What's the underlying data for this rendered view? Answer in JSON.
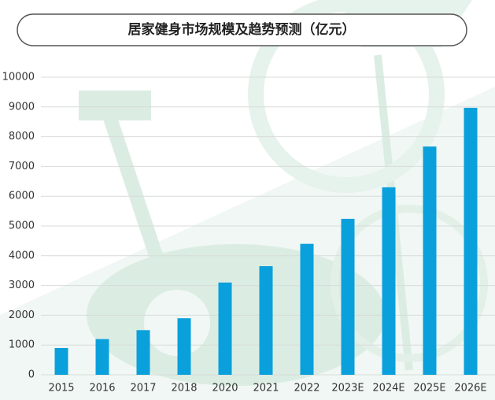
{
  "chart_data": {
    "type": "bar",
    "title": "居家健身市场规模及趋势预测（亿元）",
    "categories": [
      "2015",
      "2016",
      "2017",
      "2018",
      "2020",
      "2021",
      "2022",
      "2023E",
      "2024E",
      "2025E",
      "2026E"
    ],
    "values": [
      900,
      1200,
      1500,
      1900,
      3100,
      3650,
      4400,
      5240,
      6300,
      7670,
      8970
    ],
    "color": "#0aa0dc",
    "ylim": [
      0,
      10000
    ],
    "yticks": [
      0,
      1000,
      2000,
      3000,
      4000,
      5000,
      6000,
      7000,
      8000,
      9000,
      10000
    ],
    "grid": true
  }
}
